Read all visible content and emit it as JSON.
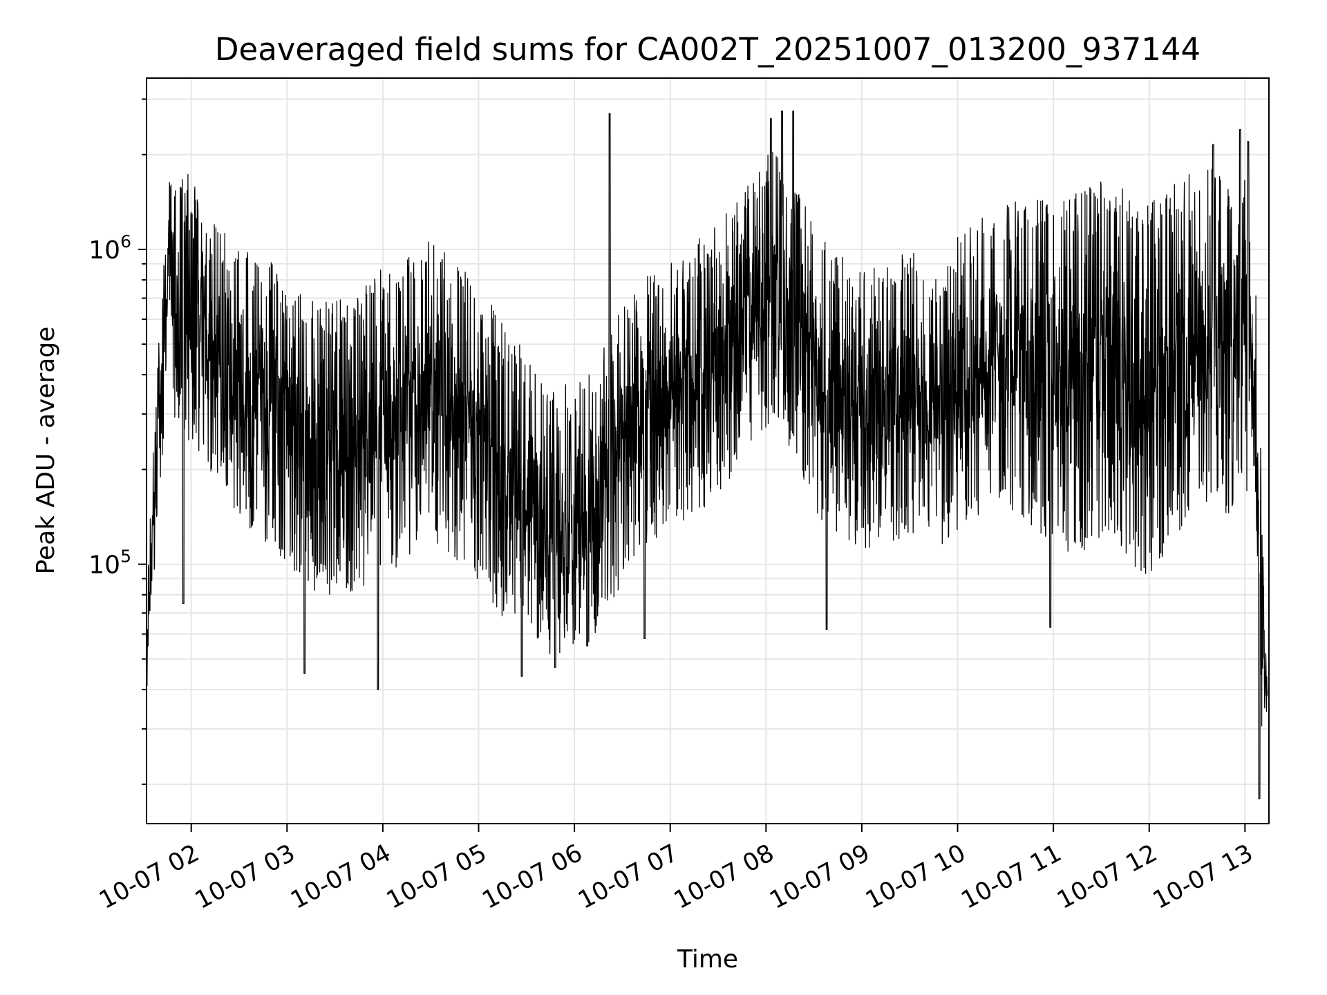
{
  "chart_data": {
    "type": "line",
    "title": "Deaveraged field sums for CA002T_20251007_013200_937144",
    "xlabel": "Time",
    "ylabel": "Peak ADU - average",
    "yscale": "log",
    "ylim": [
      15000,
      3500000
    ],
    "xlim": [
      "2025-10-07T01:32:00",
      "2025-10-07T13:15:00"
    ],
    "grid": true,
    "line_color": "#000000",
    "grid_color": "#e6e6e6",
    "x_ticks": [
      {
        "t": "2025-10-07T02:00:00",
        "label": "10-07 02"
      },
      {
        "t": "2025-10-07T03:00:00",
        "label": "10-07 03"
      },
      {
        "t": "2025-10-07T04:00:00",
        "label": "10-07 04"
      },
      {
        "t": "2025-10-07T05:00:00",
        "label": "10-07 05"
      },
      {
        "t": "2025-10-07T06:00:00",
        "label": "10-07 06"
      },
      {
        "t": "2025-10-07T07:00:00",
        "label": "10-07 07"
      },
      {
        "t": "2025-10-07T08:00:00",
        "label": "10-07 08"
      },
      {
        "t": "2025-10-07T09:00:00",
        "label": "10-07 09"
      },
      {
        "t": "2025-10-07T10:00:00",
        "label": "10-07 10"
      },
      {
        "t": "2025-10-07T11:00:00",
        "label": "10-07 11"
      },
      {
        "t": "2025-10-07T12:00:00",
        "label": "10-07 12"
      },
      {
        "t": "2025-10-07T13:00:00",
        "label": "10-07 13"
      }
    ],
    "y_ticks": [
      {
        "value": 100000,
        "base": "10",
        "exp": "5"
      },
      {
        "value": 1000000,
        "base": "10",
        "exp": "6"
      }
    ],
    "series": [
      {
        "x": [
          "2025-10-07T01:32:00",
          "2025-10-07T01:36:00",
          "2025-10-07T01:40:00",
          "2025-10-07T01:45:00",
          "2025-10-07T01:50:00",
          "2025-10-07T02:00:00",
          "2025-10-07T02:10:00",
          "2025-10-07T02:20:00",
          "2025-10-07T02:30:00",
          "2025-10-07T02:40:00",
          "2025-10-07T02:50:00",
          "2025-10-07T03:00:00",
          "2025-10-07T03:10:00",
          "2025-10-07T03:20:00",
          "2025-10-07T03:30:00",
          "2025-10-07T03:40:00",
          "2025-10-07T03:50:00",
          "2025-10-07T04:00:00",
          "2025-10-07T04:10:00",
          "2025-10-07T04:20:00",
          "2025-10-07T04:30:00",
          "2025-10-07T04:40:00",
          "2025-10-07T04:50:00",
          "2025-10-07T05:00:00",
          "2025-10-07T05:10:00",
          "2025-10-07T05:20:00",
          "2025-10-07T05:30:00",
          "2025-10-07T05:40:00",
          "2025-10-07T05:50:00",
          "2025-10-07T06:00:00",
          "2025-10-07T06:10:00",
          "2025-10-07T06:20:00",
          "2025-10-07T06:30:00",
          "2025-10-07T06:40:00",
          "2025-10-07T06:50:00",
          "2025-10-07T07:00:00",
          "2025-10-07T07:10:00",
          "2025-10-07T07:20:00",
          "2025-10-07T07:30:00",
          "2025-10-07T07:40:00",
          "2025-10-07T07:50:00",
          "2025-10-07T08:00:00",
          "2025-10-07T08:10:00",
          "2025-10-07T08:20:00",
          "2025-10-07T08:30:00",
          "2025-10-07T08:40:00",
          "2025-10-07T08:50:00",
          "2025-10-07T09:00:00",
          "2025-10-07T09:10:00",
          "2025-10-07T09:20:00",
          "2025-10-07T09:30:00",
          "2025-10-07T09:40:00",
          "2025-10-07T09:50:00",
          "2025-10-07T10:00:00",
          "2025-10-07T10:10:00",
          "2025-10-07T10:20:00",
          "2025-10-07T10:30:00",
          "2025-10-07T10:40:00",
          "2025-10-07T10:50:00",
          "2025-10-07T11:00:00",
          "2025-10-07T11:10:00",
          "2025-10-07T11:20:00",
          "2025-10-07T11:30:00",
          "2025-10-07T11:40:00",
          "2025-10-07T11:50:00",
          "2025-10-07T12:00:00",
          "2025-10-07T12:10:00",
          "2025-10-07T12:20:00",
          "2025-10-07T12:30:00",
          "2025-10-07T12:40:00",
          "2025-10-07T12:50:00",
          "2025-10-07T13:00:00",
          "2025-10-07T13:04:00",
          "2025-10-07T13:07:00",
          "2025-10-07T13:10:00",
          "2025-10-07T13:12:00",
          "2025-10-07T13:14:00"
        ],
        "center": [
          50000,
          120000,
          300000,
          600000,
          650000,
          700000,
          650000,
          600000,
          600000,
          550000,
          500000,
          400000,
          350000,
          300000,
          300000,
          300000,
          320000,
          350000,
          380000,
          400000,
          420000,
          400000,
          350000,
          320000,
          250000,
          200000,
          180000,
          150000,
          140000,
          130000,
          150000,
          200000,
          300000,
          400000,
          420000,
          450000,
          480000,
          500000,
          550000,
          650000,
          800000,
          900000,
          850000,
          700000,
          550000,
          450000,
          420000,
          400000,
          400000,
          420000,
          450000,
          420000,
          380000,
          480000,
          550000,
          600000,
          650000,
          650000,
          650000,
          650000,
          700000,
          750000,
          800000,
          800000,
          600000,
          550000,
          700000,
          800000,
          900000,
          900000,
          850000,
          900000,
          800000,
          400000,
          100000,
          45000,
          40000
        ],
        "upper": [
          60000,
          200000,
          500000,
          1500000,
          1600000,
          1600000,
          1200000,
          1000000,
          900000,
          800000,
          800000,
          700000,
          650000,
          600000,
          700000,
          700000,
          750000,
          800000,
          850000,
          900000,
          1000000,
          900000,
          800000,
          750000,
          600000,
          500000,
          450000,
          400000,
          380000,
          350000,
          400000,
          500000,
          600000,
          700000,
          750000,
          800000,
          900000,
          1000000,
          1100000,
          1300000,
          1500000,
          1900000,
          1800000,
          1400000,
          1100000,
          900000,
          850000,
          800000,
          800000,
          850000,
          900000,
          850000,
          800000,
          1000000,
          1100000,
          1200000,
          1250000,
          1300000,
          1300000,
          1300000,
          1350000,
          1400000,
          1500000,
          1450000,
          1400000,
          1350000,
          1400000,
          1500000,
          1600000,
          1600000,
          1500000,
          1600000,
          1500000,
          800000,
          200000,
          70000,
          60000
        ],
        "lower": [
          45000,
          80000,
          200000,
          350000,
          300000,
          250000,
          200000,
          150000,
          130000,
          120000,
          110000,
          100000,
          90000,
          80000,
          80000,
          80000,
          85000,
          90000,
          100000,
          110000,
          120000,
          110000,
          100000,
          90000,
          75000,
          65000,
          60000,
          55000,
          55000,
          55000,
          60000,
          70000,
          90000,
          110000,
          120000,
          130000,
          140000,
          150000,
          170000,
          200000,
          250000,
          280000,
          260000,
          200000,
          150000,
          130000,
          120000,
          115000,
          115000,
          120000,
          125000,
          120000,
          110000,
          130000,
          140000,
          150000,
          150000,
          140000,
          120000,
          110000,
          100000,
          100000,
          110000,
          110000,
          90000,
          80000,
          100000,
          120000,
          140000,
          140000,
          130000,
          150000,
          200000,
          150000,
          30000,
          25000,
          25000
        ]
      }
    ],
    "spikes": [
      {
        "t": "2025-10-07T06:22:00",
        "peak": 2700000
      },
      {
        "t": "2025-10-07T08:03:00",
        "peak": 2600000
      },
      {
        "t": "2025-10-07T08:10:00",
        "peak": 2750000
      },
      {
        "t": "2025-10-07T08:17:00",
        "peak": 2750000
      },
      {
        "t": "2025-10-07T12:40:00",
        "peak": 2150000
      },
      {
        "t": "2025-10-07T12:57:00",
        "peak": 2400000
      },
      {
        "t": "2025-10-07T13:02:00",
        "peak": 2200000
      }
    ],
    "dips": [
      {
        "t": "2025-10-07T01:55:00",
        "low": 75000
      },
      {
        "t": "2025-10-07T03:11:00",
        "low": 45000
      },
      {
        "t": "2025-10-07T03:57:00",
        "low": 40000
      },
      {
        "t": "2025-10-07T05:27:00",
        "low": 44000
      },
      {
        "t": "2025-10-07T05:48:00",
        "low": 47000
      },
      {
        "t": "2025-10-07T06:08:00",
        "low": 55000
      },
      {
        "t": "2025-10-07T06:44:00",
        "low": 58000
      },
      {
        "t": "2025-10-07T08:38:00",
        "low": 62000
      },
      {
        "t": "2025-10-07T10:58:00",
        "low": 63000
      },
      {
        "t": "2025-10-07T13:09:00",
        "low": 18000
      }
    ]
  }
}
